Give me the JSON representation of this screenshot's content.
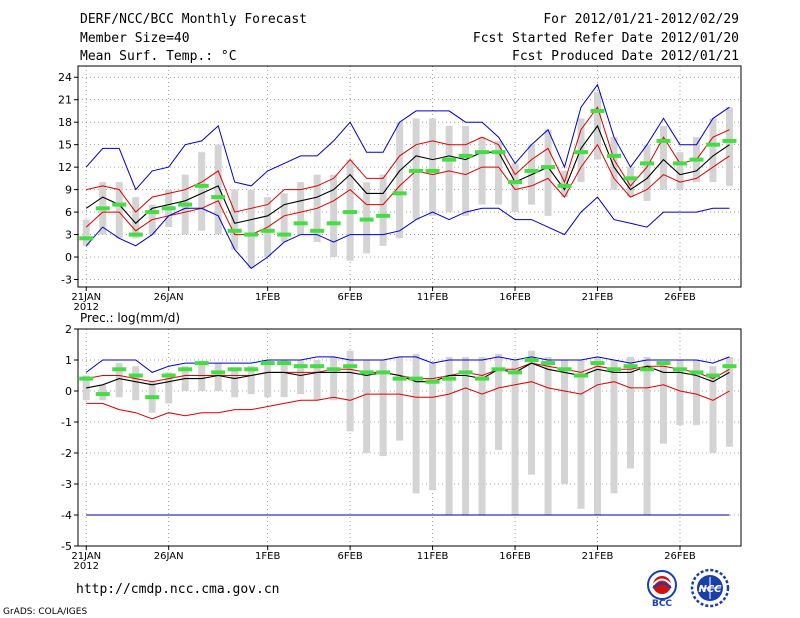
{
  "header": {
    "title": "DERF/NCC/BCC Monthly Forecast",
    "member_size": "Member Size=40",
    "variable": "Mean Surf. Temp.: °C",
    "period": "For 2012/01/21-2012/02/29",
    "started": "Fcst Started Refer Date 2012/01/20",
    "produced": "Fcst Produced Date 2012/01/21"
  },
  "footer": {
    "url": "http://cmdp.ncc.cma.gov.cn",
    "credit": "GrADS: COLA/IGES",
    "bcc_label": "BCC",
    "ncc_label": "NCC"
  },
  "colors": {
    "max": "#0000cc",
    "p90": "#dd0000",
    "mean": "#000000",
    "box": "#d4d4d4",
    "median": "#44dd44",
    "grid": "#888888"
  },
  "chart_data": [
    {
      "type": "line",
      "title": "Mean Surf. Temp.: °C",
      "ylabel": "°C",
      "ylim": [
        -4,
        25.5
      ],
      "yticks": [
        -3,
        0,
        3,
        6,
        9,
        12,
        15,
        18,
        21,
        24
      ],
      "xlim": [
        0.5,
        40.7
      ],
      "xticks": [
        {
          "x": 1,
          "label": "21JAN",
          "sub": "2012"
        },
        {
          "x": 6,
          "label": "26JAN"
        },
        {
          "x": 12,
          "label": "1FEB"
        },
        {
          "x": 17,
          "label": "6FEB"
        },
        {
          "x": 22,
          "label": "11FEB"
        },
        {
          "x": 27,
          "label": "16FEB"
        },
        {
          "x": 32,
          "label": "21FEB"
        },
        {
          "x": 37,
          "label": "26FEB"
        }
      ],
      "grid": true,
      "series": [
        {
          "name": "max",
          "color": "#0000cc",
          "values": [
            12,
            14.5,
            14.5,
            9,
            11.5,
            12,
            15,
            15.5,
            17.5,
            10,
            9.5,
            11.5,
            12.5,
            13.5,
            13.5,
            15.5,
            18,
            14,
            14,
            18,
            19.5,
            19.5,
            19.5,
            18,
            18,
            16,
            12.5,
            15,
            17,
            12,
            20,
            23,
            16,
            12,
            15,
            18.5,
            15,
            15,
            18.5,
            20
          ]
        },
        {
          "name": "p90",
          "color": "#dd0000",
          "values": [
            9,
            9.5,
            9,
            6,
            8,
            8.5,
            9,
            10,
            11.5,
            6,
            6.5,
            7,
            9,
            9,
            9.5,
            10.5,
            13,
            10.5,
            10.5,
            13.5,
            15,
            15.5,
            15,
            15,
            16,
            15,
            11,
            13,
            14.5,
            10,
            17,
            20,
            13,
            9.5,
            12,
            16,
            12.5,
            13,
            16,
            17
          ]
        },
        {
          "name": "mean",
          "color": "#000000",
          "values": [
            6.5,
            8,
            7,
            4.5,
            6.5,
            7,
            7.5,
            8.5,
            9.5,
            4.5,
            5,
            5.5,
            7,
            7.5,
            8,
            9,
            11,
            8.5,
            8.5,
            11.5,
            13.5,
            13,
            13.5,
            13,
            14,
            14,
            10,
            11,
            12,
            9,
            14.5,
            17.5,
            12,
            9,
            10.5,
            13,
            11,
            11.5,
            13.5,
            15
          ]
        },
        {
          "name": "min",
          "color": "#dd0000",
          "values": [
            4,
            6,
            6,
            3.5,
            5,
            5.5,
            6,
            6.5,
            7.5,
            3,
            3,
            4,
            5.5,
            6,
            6.5,
            7.5,
            9,
            7,
            7,
            9.5,
            11.5,
            11,
            11.5,
            11,
            12,
            12,
            9,
            9.5,
            10.5,
            8,
            12,
            15,
            10.5,
            8,
            9,
            11,
            10,
            10.5,
            12,
            13.5
          ]
        },
        {
          "name": "low",
          "color": "#0000cc",
          "values": [
            1.5,
            4,
            2.5,
            1.5,
            3,
            5.5,
            6.5,
            6.5,
            5.5,
            1,
            -1.5,
            0,
            2,
            3,
            3,
            2,
            3,
            3,
            3,
            3.5,
            5,
            6,
            5,
            6,
            6.5,
            6.5,
            5,
            5,
            4,
            3,
            6,
            8,
            5,
            4.5,
            4,
            6,
            6,
            6,
            6.5,
            6.5
          ]
        }
      ],
      "boxes": {
        "name": "ensemble range",
        "color": "#d4d4d4",
        "low": [
          1.5,
          3,
          2.5,
          2.5,
          3,
          4,
          3,
          3.5,
          3,
          1,
          -1.5,
          0,
          2,
          3,
          2,
          0,
          -0.5,
          0.5,
          1.5,
          2.5,
          5,
          5.5,
          6,
          5.5,
          7,
          7,
          6,
          7,
          5.5,
          8,
          10,
          13,
          9,
          8,
          7.5,
          9,
          9,
          10,
          10,
          9.5
        ],
        "high": [
          5,
          10,
          10,
          8,
          7,
          9,
          11,
          14,
          15,
          9,
          9,
          8,
          8.5,
          10,
          11,
          11,
          13,
          10,
          11,
          18,
          18.5,
          18.5,
          17.5,
          17.5,
          16,
          15.5,
          12.5,
          15,
          17,
          11.5,
          18.5,
          22,
          16,
          12,
          15,
          17.5,
          14,
          16,
          18.5,
          20
        ],
        "median": [
          2.5,
          6.5,
          7,
          3,
          6,
          6.5,
          7,
          9.5,
          8,
          3.5,
          3,
          3.5,
          3,
          4.5,
          3.5,
          4.5,
          6,
          5,
          5.5,
          8.5,
          11.5,
          11.5,
          13,
          13.5,
          14,
          14,
          10,
          11.5,
          12,
          9.5,
          14,
          19.5,
          13.5,
          10.5,
          12.5,
          15.5,
          12.5,
          13,
          15,
          15.5
        ]
      }
    },
    {
      "type": "line",
      "title": "Prec.: log(mm/d)",
      "ylabel": "log(mm/d)",
      "ylim": [
        -5,
        2
      ],
      "yticks": [
        -5,
        -4,
        -3,
        -2,
        -1,
        0,
        1,
        2
      ],
      "xlim": [
        0.5,
        40.7
      ],
      "xticks": [
        {
          "x": 1,
          "label": "21JAN",
          "sub": "2012"
        },
        {
          "x": 6,
          "label": "26JAN"
        },
        {
          "x": 12,
          "label": "1FEB"
        },
        {
          "x": 17,
          "label": "6FEB"
        },
        {
          "x": 22,
          "label": "11FEB"
        },
        {
          "x": 27,
          "label": "16FEB"
        },
        {
          "x": 32,
          "label": "21FEB"
        },
        {
          "x": 37,
          "label": "26FEB"
        }
      ],
      "grid": true,
      "series": [
        {
          "name": "max",
          "color": "#0000cc",
          "values": [
            0.6,
            1,
            1,
            1,
            0.6,
            0.8,
            0.9,
            0.9,
            0.9,
            0.9,
            0.9,
            1,
            1,
            1,
            1.1,
            1.1,
            1,
            1,
            1,
            1.1,
            1.1,
            0.9,
            1,
            1,
            1,
            1.1,
            1,
            1.1,
            1,
            1,
            1,
            1.1,
            1,
            0.9,
            1,
            1,
            1,
            1,
            0.9,
            1.1
          ]
        },
        {
          "name": "p90",
          "color": "#dd0000",
          "values": [
            0.4,
            0.5,
            0.5,
            0.4,
            0.3,
            0.4,
            0.5,
            0.5,
            0.5,
            0.5,
            0.5,
            0.6,
            0.6,
            0.6,
            0.6,
            0.7,
            0.7,
            0.6,
            0.6,
            0.5,
            0.4,
            0.4,
            0.5,
            0.6,
            0.5,
            0.7,
            0.7,
            0.9,
            0.8,
            0.7,
            0.6,
            0.8,
            0.7,
            0.7,
            0.8,
            0.8,
            0.7,
            0.6,
            0.4,
            0.7
          ]
        },
        {
          "name": "mean",
          "color": "#000000",
          "values": [
            0.1,
            0.2,
            0.4,
            0.3,
            0.2,
            0.3,
            0.4,
            0.4,
            0.5,
            0.4,
            0.5,
            0.6,
            0.6,
            0.5,
            0.6,
            0.6,
            0.6,
            0.5,
            0.6,
            0.5,
            0.3,
            0.3,
            0.5,
            0.5,
            0.4,
            0.7,
            0.6,
            0.9,
            0.7,
            0.6,
            0.5,
            0.7,
            0.6,
            0.6,
            0.8,
            0.6,
            0.6,
            0.5,
            0.3,
            0.6
          ]
        },
        {
          "name": "min",
          "color": "#dd0000",
          "values": [
            -0.4,
            -0.4,
            -0.6,
            -0.7,
            -0.9,
            -0.7,
            -0.8,
            -0.7,
            -0.7,
            -0.6,
            -0.6,
            -0.5,
            -0.4,
            -0.3,
            -0.3,
            -0.2,
            -0.3,
            -0.1,
            -0.1,
            -0.1,
            -0.2,
            -0.2,
            -0.1,
            0.1,
            -0.1,
            0.1,
            0.2,
            0.3,
            0.1,
            0,
            -0.1,
            0.2,
            0.3,
            0.1,
            0.1,
            0.2,
            0,
            -0.1,
            -0.3,
            0
          ]
        },
        {
          "name": "low",
          "color": "#00008b",
          "values": [
            -4,
            -4,
            -4,
            -4,
            -4,
            -4,
            -4,
            -4,
            -4,
            -4,
            -4,
            -4,
            -4,
            -4,
            -4,
            -4,
            -4,
            -4,
            -4,
            -4,
            -4,
            -4,
            -4,
            -4,
            -4,
            -4,
            -4,
            -4,
            -4,
            -4,
            -4,
            -4,
            -4,
            -4,
            -4,
            -4,
            -4,
            -4,
            -4,
            -4
          ]
        }
      ],
      "boxes": {
        "name": "ensemble range",
        "color": "#d4d4d4",
        "low": [
          -0.3,
          -0.3,
          -0.2,
          -0.3,
          -0.7,
          -0.4,
          0,
          0,
          0,
          -0.2,
          -0.1,
          -0.2,
          -0.2,
          -0.1,
          -0.3,
          -0.3,
          -1.3,
          -2,
          -2.1,
          -1.6,
          -3.3,
          -3.2,
          -4,
          -4,
          -4,
          -1.9,
          -4,
          -2.7,
          -4,
          -3,
          -3.8,
          -4,
          -3.3,
          -2.5,
          -4,
          -1.7,
          -1.1,
          -1.1,
          -2,
          -1.8
        ],
        "high": [
          0.5,
          0.2,
          0.9,
          0.8,
          0.3,
          0.6,
          0.8,
          0.9,
          0.9,
          0.7,
          0.8,
          1,
          1,
          1,
          1,
          1.1,
          1.3,
          1,
          1,
          1.1,
          1.2,
          0.9,
          1.1,
          1.1,
          1.1,
          1.2,
          1,
          1.3,
          1.1,
          1,
          1,
          1.1,
          1,
          1.1,
          1.1,
          0.9,
          1,
          1,
          0.8,
          1.1
        ],
        "median": [
          0.4,
          -0.1,
          0.7,
          0.5,
          -0.2,
          0.5,
          0.7,
          0.9,
          0.6,
          0.7,
          0.7,
          0.9,
          0.9,
          0.8,
          0.8,
          0.7,
          0.8,
          0.6,
          0.6,
          0.4,
          0.4,
          0.3,
          0.4,
          0.6,
          0.4,
          0.7,
          0.6,
          1,
          0.9,
          0.7,
          0.5,
          0.9,
          0.7,
          0.8,
          0.7,
          0.9,
          0.7,
          0.6,
          0.5,
          0.8
        ]
      }
    }
  ]
}
